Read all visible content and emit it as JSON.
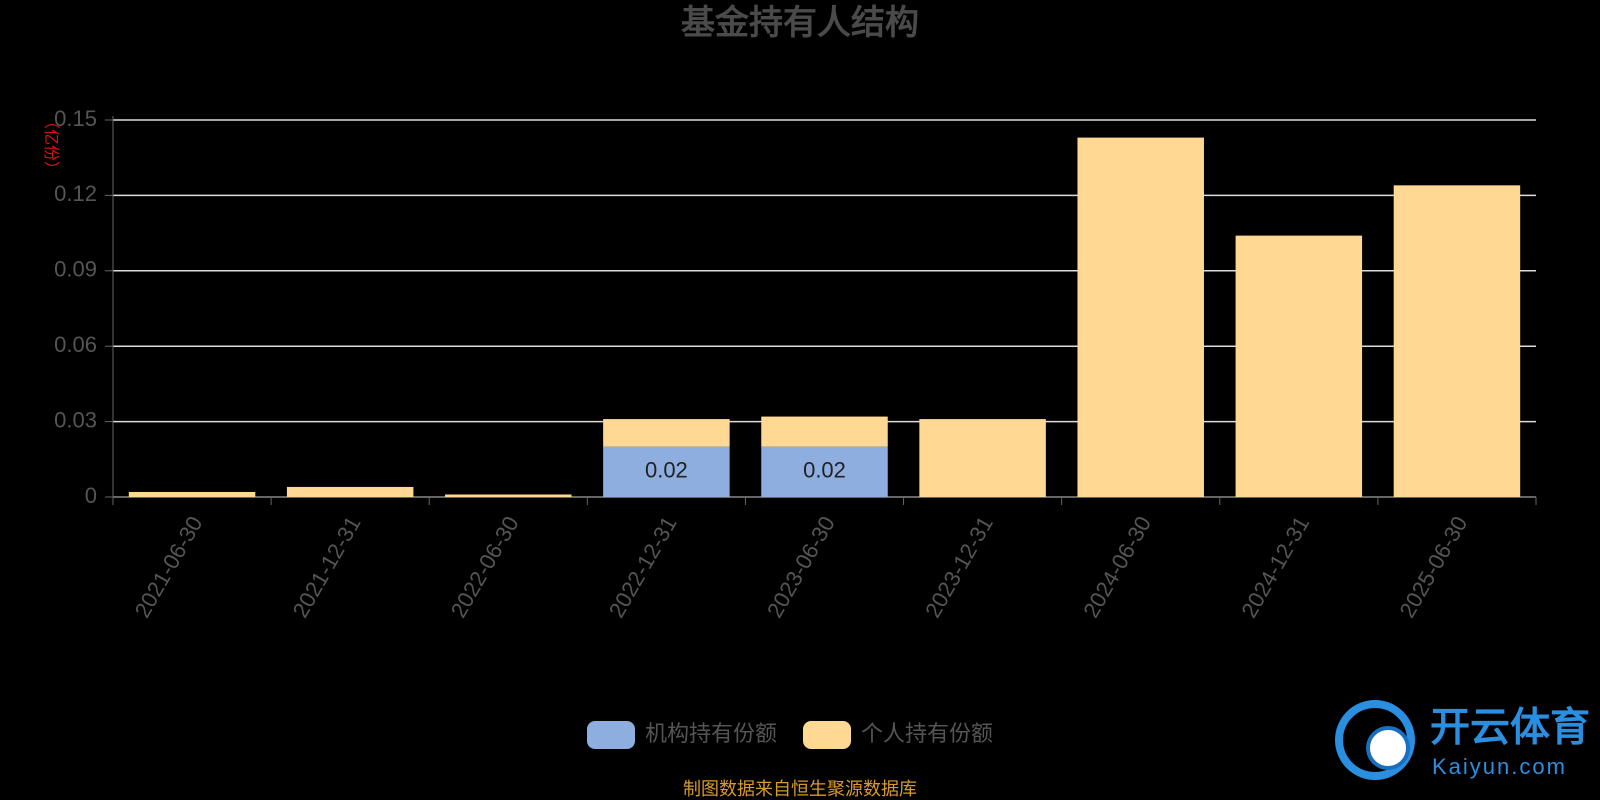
{
  "chart_data": {
    "type": "bar",
    "stacked": true,
    "title": "基金持有人结构",
    "y_unit": "（亿份）",
    "categories": [
      "2021-06-30",
      "2021-12-31",
      "2022-06-30",
      "2022-12-31",
      "2023-06-30",
      "2023-12-31",
      "2024-06-30",
      "2024-12-31",
      "2025-06-30"
    ],
    "series": [
      {
        "name": "机构持有份额",
        "color": "#8eaedf",
        "values": [
          null,
          null,
          null,
          0.02,
          0.02,
          null,
          null,
          null,
          null
        ],
        "show_labels": true
      },
      {
        "name": "个人持有份额",
        "color": "#ffd993",
        "values": [
          0.002,
          0.004,
          0.001,
          0.011,
          0.012,
          0.031,
          0.143,
          0.104,
          0.124
        ],
        "show_labels": false
      }
    ],
    "ylim": [
      0,
      0.15
    ],
    "yticks": [
      0,
      0.03,
      0.06,
      0.09,
      0.12,
      0.15
    ],
    "grid": true,
    "legend": "bottom",
    "source": "制图数据来自恒生聚源数据库",
    "watermark": {
      "brand": "开云体育",
      "site": "Kaiyun.com"
    }
  }
}
